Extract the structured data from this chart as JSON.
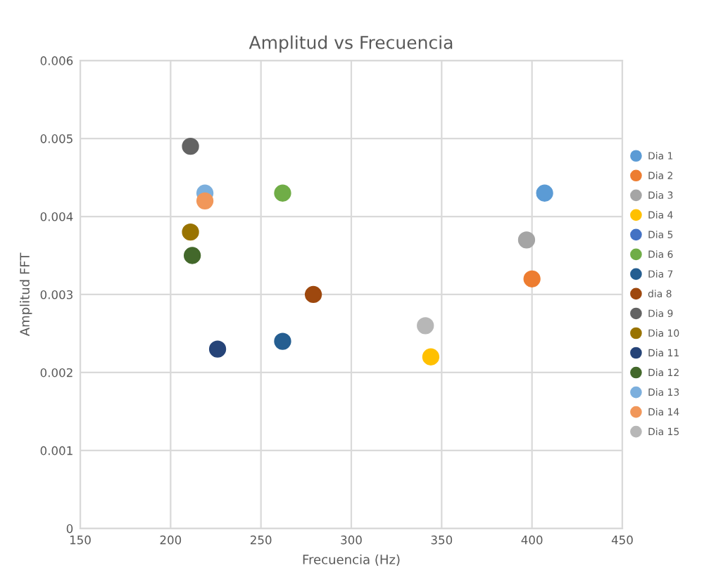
{
  "chart_data": {
    "type": "scatter",
    "title": "Amplitud vs Frecuencia",
    "xlabel": "Frecuencia (Hz)",
    "ylabel": "Amplitud FFT",
    "xlim": [
      150,
      450
    ],
    "xticks": [
      150,
      200,
      250,
      300,
      350,
      400,
      450
    ],
    "ylim": [
      0,
      0.006
    ],
    "yticks": [
      0,
      0.001,
      0.002,
      0.003,
      0.004,
      0.005,
      0.006
    ],
    "grid": true,
    "legend": "right",
    "marker": "circle",
    "series": [
      {
        "name": "Dia 1",
        "color": "#5b9bd5",
        "x": [
          407
        ],
        "values": [
          0.0043
        ]
      },
      {
        "name": "Dia 2",
        "color": "#ed7d31",
        "x": [
          400
        ],
        "values": [
          0.0032
        ]
      },
      {
        "name": "Dia 3",
        "color": "#a5a5a5",
        "x": [
          397
        ],
        "values": [
          0.0037
        ]
      },
      {
        "name": "Dia 4",
        "color": "#ffc000",
        "x": [
          344
        ],
        "values": [
          0.0022
        ]
      },
      {
        "name": "Dia 5",
        "color": "#4472c4",
        "x": [
          null
        ],
        "values": [
          null
        ]
      },
      {
        "name": "Dia 6",
        "color": "#70ad47",
        "x": [
          262
        ],
        "values": [
          0.0043
        ]
      },
      {
        "name": "Dia 7",
        "color": "#255e91",
        "x": [
          262
        ],
        "values": [
          0.0024
        ]
      },
      {
        "name": "dia 8",
        "color": "#9e480e",
        "x": [
          279
        ],
        "values": [
          0.003
        ]
      },
      {
        "name": "Dia 9",
        "color": "#636363",
        "x": [
          211
        ],
        "values": [
          0.0049
        ]
      },
      {
        "name": "Dia 10",
        "color": "#997300",
        "x": [
          211
        ],
        "values": [
          0.0038
        ]
      },
      {
        "name": "Dia 11",
        "color": "#264478",
        "x": [
          226
        ],
        "values": [
          0.0023
        ]
      },
      {
        "name": "Dia 12",
        "color": "#43682b",
        "x": [
          212
        ],
        "values": [
          0.0035
        ]
      },
      {
        "name": "Dia 13",
        "color": "#7cafdd",
        "x": [
          219
        ],
        "values": [
          0.0043
        ]
      },
      {
        "name": "Dia 14",
        "color": "#f1975a",
        "x": [
          219
        ],
        "values": [
          0.0042
        ]
      },
      {
        "name": "Dia 15",
        "color": "#b7b7b7",
        "x": [
          341
        ],
        "values": [
          0.0026
        ]
      }
    ]
  }
}
